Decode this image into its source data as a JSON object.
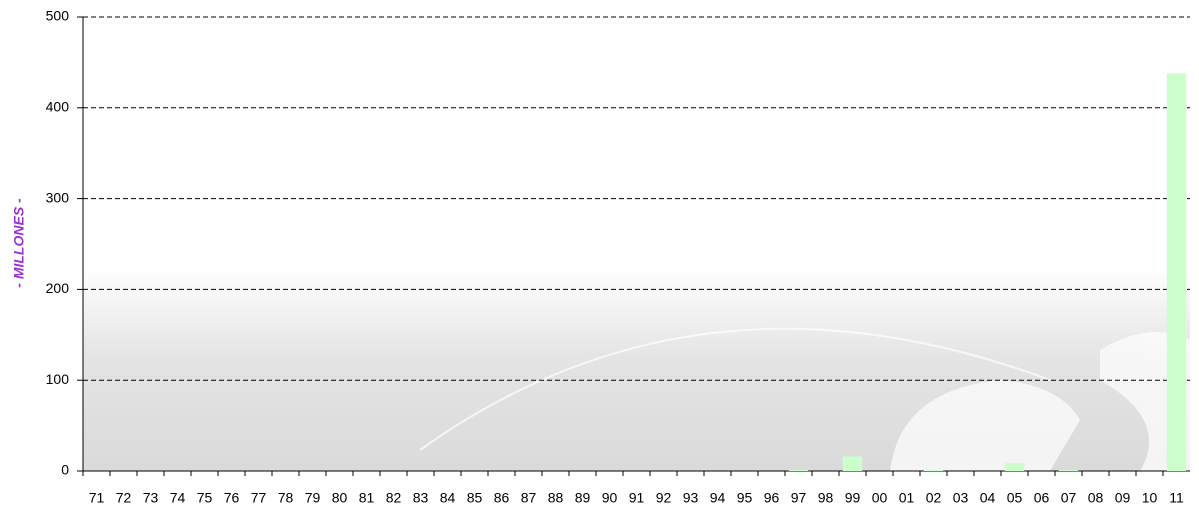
{
  "chart_data": {
    "type": "bar",
    "y_label": "- MILLONES -",
    "categories": [
      "71",
      "72",
      "73",
      "74",
      "75",
      "76",
      "77",
      "78",
      "79",
      "80",
      "81",
      "82",
      "83",
      "84",
      "85",
      "86",
      "87",
      "88",
      "89",
      "90",
      "91",
      "92",
      "93",
      "94",
      "95",
      "96",
      "97",
      "98",
      "99",
      "00",
      "01",
      "02",
      "03",
      "04",
      "05",
      "06",
      "07",
      "08",
      "09",
      "10",
      "11"
    ],
    "values": [
      0,
      0,
      0,
      0,
      0,
      0,
      0,
      0,
      0,
      0,
      0,
      0,
      0,
      0,
      0,
      0,
      0,
      0,
      0,
      0,
      0,
      0,
      0,
      0,
      0,
      0,
      1,
      0,
      16,
      0,
      0,
      1,
      0,
      0,
      9,
      0,
      1,
      0,
      0,
      0,
      438
    ],
    "color": "#ccffcc",
    "ylim": [
      0,
      500
    ],
    "yticks": [
      0,
      100,
      200,
      300,
      400,
      500
    ],
    "grid": true
  }
}
